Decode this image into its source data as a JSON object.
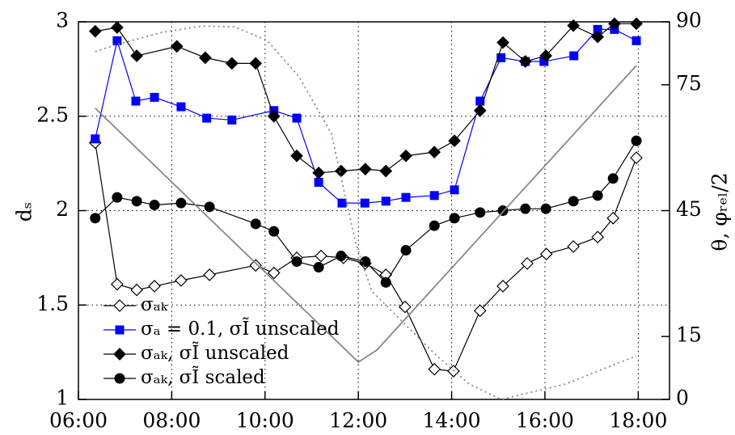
{
  "chart_data": {
    "type": "line",
    "ylabel": "dₛ",
    "y2label": "θ, φᵣₑₗ/2",
    "xlim": [
      6,
      18.67
    ],
    "xticks": [
      {
        "value": 6,
        "label": "06:00"
      },
      {
        "value": 8,
        "label": "08:00"
      },
      {
        "value": 10,
        "label": "10:00"
      },
      {
        "value": 12,
        "label": "12:00"
      },
      {
        "value": 14,
        "label": "14:00"
      },
      {
        "value": 16,
        "label": "16:00"
      },
      {
        "value": 18,
        "label": "18:00"
      }
    ],
    "ylim": [
      1,
      3
    ],
    "yticks": [
      1,
      1.5,
      2,
      2.5,
      3
    ],
    "y2lim": [
      0,
      90
    ],
    "y2ticks": [
      0,
      15,
      45,
      75,
      90
    ],
    "grid": true,
    "legend": "lower-left",
    "series": [
      {
        "name": "σₐₖ",
        "color": "#000000",
        "marker": "diamond-open",
        "x": [
          6.36,
          6.83,
          7.25,
          7.63,
          8.2,
          8.81,
          9.8,
          10.19,
          10.68,
          11.2,
          11.68,
          12.15,
          12.59,
          13.0,
          13.63,
          14.04,
          14.61,
          15.1,
          15.62,
          16.03,
          16.61,
          17.13,
          17.46,
          17.96
        ],
        "values": [
          2.36,
          1.61,
          1.58,
          1.6,
          1.63,
          1.66,
          1.71,
          1.67,
          1.75,
          1.76,
          1.75,
          1.72,
          1.66,
          1.49,
          1.16,
          1.15,
          1.47,
          1.6,
          1.72,
          1.77,
          1.81,
          1.86,
          1.96,
          2.28
        ]
      },
      {
        "name": "σₐ = 0.1, σĨ unscaled",
        "color": "#0000ff",
        "marker": "square",
        "x": [
          6.36,
          6.83,
          7.23,
          7.63,
          8.2,
          8.75,
          9.29,
          10.19,
          10.68,
          11.15,
          11.65,
          12.14,
          12.59,
          13.02,
          13.63,
          14.06,
          14.61,
          15.06,
          15.58,
          15.98,
          16.62,
          17.13,
          17.49,
          17.96
        ],
        "values": [
          2.38,
          2.9,
          2.58,
          2.6,
          2.55,
          2.49,
          2.48,
          2.53,
          2.49,
          2.15,
          2.04,
          2.04,
          2.05,
          2.07,
          2.08,
          2.11,
          2.58,
          2.81,
          2.79,
          2.79,
          2.82,
          2.96,
          2.96,
          2.9
        ]
      },
      {
        "name": "σₐₖ, σĨ unscaled",
        "color": "#000000",
        "marker": "diamond",
        "x": [
          6.36,
          6.83,
          7.25,
          8.11,
          8.72,
          9.29,
          9.8,
          10.19,
          10.68,
          11.15,
          11.63,
          12.15,
          12.59,
          13.02,
          13.63,
          14.06,
          14.61,
          15.1,
          15.58,
          16.02,
          16.61,
          17.13,
          17.49,
          17.96
        ],
        "values": [
          2.95,
          2.97,
          2.82,
          2.87,
          2.81,
          2.78,
          2.78,
          2.5,
          2.29,
          2.2,
          2.21,
          2.22,
          2.21,
          2.29,
          2.31,
          2.37,
          2.53,
          2.89,
          2.79,
          2.82,
          2.98,
          2.92,
          2.99,
          2.99
        ]
      },
      {
        "name": "σₐₖ, σĨ scaled",
        "color": "#000000",
        "marker": "circle",
        "x": [
          6.36,
          6.83,
          7.25,
          7.63,
          8.2,
          8.81,
          9.8,
          10.19,
          10.68,
          11.15,
          11.63,
          12.15,
          12.59,
          13.02,
          13.63,
          14.06,
          14.61,
          15.1,
          15.58,
          16.02,
          16.61,
          17.13,
          17.46,
          17.96
        ],
        "values": [
          1.96,
          2.07,
          2.05,
          2.03,
          2.04,
          2.02,
          1.93,
          1.89,
          1.73,
          1.7,
          1.76,
          1.73,
          1.62,
          1.79,
          1.92,
          1.96,
          1.99,
          2.0,
          2.01,
          2.01,
          2.05,
          2.08,
          2.17,
          2.37
        ]
      },
      {
        "color": "#888888",
        "marker": "none",
        "axis": "y2",
        "x": [
          6.36,
          12.0,
          12.4,
          17.96
        ],
        "values": [
          69.4,
          8.9,
          11.8,
          79.6
        ]
      },
      {
        "color": "#888888",
        "marker": "none",
        "axis": "y2",
        "dash": "dotted",
        "x": [
          6.36,
          6.83,
          7.79,
          8.65,
          9.34,
          10.04,
          10.73,
          11.42,
          11.94,
          12.29,
          12.98,
          13.68,
          14.37,
          15.06,
          16.45,
          17.96
        ],
        "values": [
          82.9,
          84.6,
          87.5,
          89,
          88.8,
          85.6,
          76.9,
          63.4,
          37.4,
          25.8,
          18.1,
          10.4,
          3.7,
          0,
          3.7,
          10.4
        ]
      }
    ]
  }
}
